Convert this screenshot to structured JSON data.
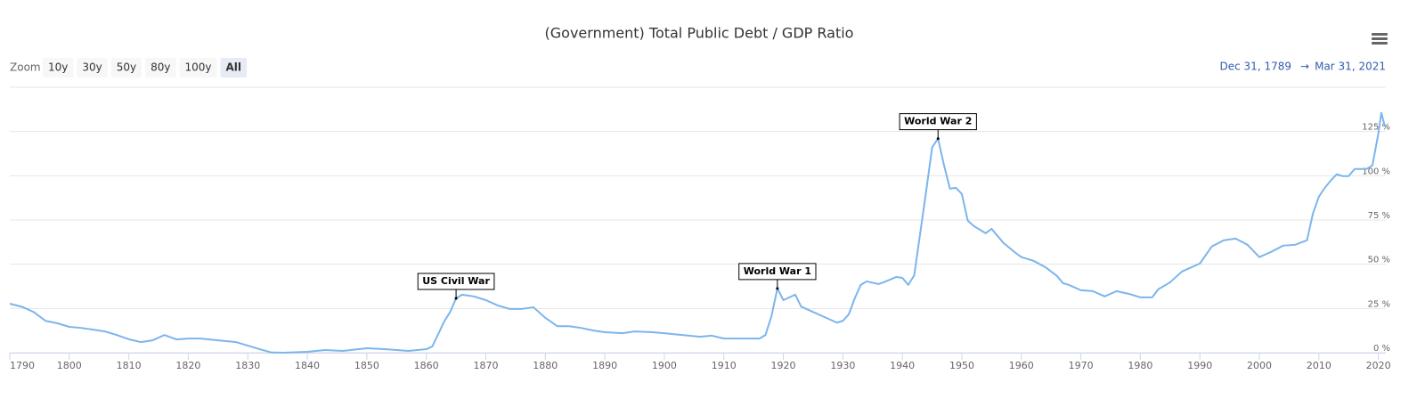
{
  "chart_data": {
    "type": "line",
    "title": "(Government) Total Public Debt / GDP Ratio",
    "zoom_label": "Zoom",
    "zoom_buttons": [
      "10y",
      "30y",
      "50y",
      "80y",
      "100y",
      "All"
    ],
    "zoom_selected": "All",
    "range_start": "Dec 31, 1789",
    "range_arrow": "→",
    "range_end": "Mar 31, 2021",
    "color": "#7cb5ec",
    "grid": true,
    "xlim": [
      1790,
      2021.25
    ],
    "xticks": [
      1790,
      1800,
      1810,
      1820,
      1830,
      1840,
      1850,
      1860,
      1870,
      1880,
      1890,
      1900,
      1910,
      1920,
      1930,
      1940,
      1950,
      1960,
      1970,
      1980,
      1990,
      2000,
      2010,
      2020
    ],
    "ylim": [
      0,
      150
    ],
    "yticks": [
      {
        "value": 0,
        "label": "0 %"
      },
      {
        "value": 25,
        "label": "25 %"
      },
      {
        "value": 50,
        "label": "50 %"
      },
      {
        "value": 75,
        "label": "75 %"
      },
      {
        "value": 100,
        "label": "100 %"
      },
      {
        "value": 125,
        "label": "125 %"
      }
    ],
    "x": [
      1790,
      1792,
      1794,
      1796,
      1798,
      1800,
      1802,
      1804,
      1806,
      1808,
      1810,
      1812,
      1814,
      1816,
      1818,
      1820,
      1822,
      1825,
      1828,
      1830,
      1832,
      1834,
      1836,
      1840,
      1843,
      1846,
      1850,
      1853,
      1857,
      1860,
      1861,
      1862,
      1863,
      1864,
      1865,
      1866,
      1868,
      1870,
      1872,
      1874,
      1876,
      1878,
      1880,
      1882,
      1884,
      1886,
      1888,
      1890,
      1893,
      1895,
      1898,
      1900,
      1903,
      1906,
      1908,
      1910,
      1913,
      1916,
      1917,
      1918,
      1919,
      1920,
      1922,
      1923,
      1925,
      1927,
      1929,
      1930,
      1931,
      1932,
      1933,
      1934,
      1936,
      1937,
      1939,
      1940,
      1941,
      1942,
      1943,
      1944,
      1945,
      1946,
      1947,
      1948,
      1949,
      1950,
      1951,
      1952,
      1954,
      1955,
      1957,
      1959,
      1960,
      1962,
      1964,
      1966,
      1967,
      1968,
      1970,
      1972,
      1974,
      1976,
      1978,
      1980,
      1982,
      1983,
      1985,
      1987,
      1990,
      1992,
      1994,
      1996,
      1998,
      2000,
      2002,
      2004,
      2006,
      2008,
      2009,
      2010,
      2011,
      2012,
      2013,
      2014,
      2015,
      2016,
      2018,
      2019,
      2020,
      2020.5,
      2021,
      2021.25
    ],
    "values": [
      27.7,
      26,
      23,
      18,
      16.6,
      14.6,
      14,
      13,
      12,
      10,
      7.6,
      6,
      7,
      10,
      7.5,
      8,
      8,
      7,
      6,
      4,
      2,
      0.1,
      0,
      0.5,
      1.5,
      1,
      2.5,
      2,
      1,
      2,
      3.5,
      10.5,
      17.6,
      23,
      30.7,
      32.8,
      31.8,
      29.7,
      26.7,
      24.7,
      24.7,
      25.7,
      19.7,
      15,
      15,
      14,
      12.6,
      11.6,
      11,
      12,
      11.6,
      11,
      10,
      9,
      9.6,
      8,
      8,
      8,
      10,
      20.6,
      36.3,
      29.7,
      32.8,
      26,
      23,
      20,
      17,
      18,
      21.7,
      30.7,
      38.3,
      40.3,
      38.8,
      40,
      42.8,
      42.3,
      38.3,
      43.8,
      67.5,
      91.2,
      116,
      121,
      106,
      92.7,
      93.2,
      89.7,
      74.6,
      71.6,
      67.5,
      70,
      62,
      56.5,
      54,
      52,
      48.4,
      43.3,
      39.3,
      38.3,
      35.3,
      34.8,
      31.8,
      34.8,
      33.3,
      31.3,
      31.3,
      35.8,
      39.8,
      45.9,
      50.4,
      60,
      63.5,
      64.5,
      61,
      54,
      57,
      60.5,
      61,
      63.5,
      78.6,
      88.2,
      93.2,
      97.3,
      100.8,
      99.8,
      99.8,
      103.8,
      103.8,
      105.8,
      124,
      135.6,
      129,
      128
    ],
    "annotations": [
      {
        "x": 1865,
        "text": "US Civil War"
      },
      {
        "x": 1919,
        "text": "World War 1"
      },
      {
        "x": 1946,
        "text": "World War 2"
      }
    ]
  }
}
